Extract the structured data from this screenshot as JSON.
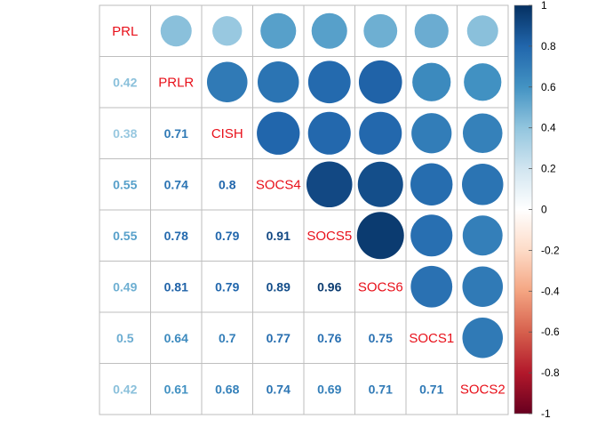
{
  "chart_data": {
    "type": "heatmap",
    "variables": [
      "PRL",
      "PRLR",
      "CISH",
      "SOCS4",
      "SOCS5",
      "SOCS6",
      "SOCS1",
      "SOCS2"
    ],
    "matrix": [
      [
        1.0,
        0.42,
        0.38,
        0.55,
        0.55,
        0.49,
        0.5,
        0.42
      ],
      [
        0.42,
        1.0,
        0.71,
        0.74,
        0.78,
        0.81,
        0.64,
        0.61
      ],
      [
        0.38,
        0.71,
        1.0,
        0.8,
        0.79,
        0.79,
        0.7,
        0.68
      ],
      [
        0.55,
        0.74,
        0.8,
        1.0,
        0.91,
        0.89,
        0.77,
        0.74
      ],
      [
        0.55,
        0.78,
        0.79,
        0.91,
        1.0,
        0.96,
        0.76,
        0.69
      ],
      [
        0.49,
        0.81,
        0.79,
        0.89,
        0.96,
        1.0,
        0.75,
        0.71
      ],
      [
        0.5,
        0.64,
        0.7,
        0.77,
        0.76,
        0.75,
        1.0,
        0.71
      ],
      [
        0.42,
        0.61,
        0.68,
        0.74,
        0.69,
        0.71,
        0.71,
        1.0
      ]
    ],
    "lower_labels": [
      [
        "0.42"
      ],
      [
        "0.38",
        "0.71"
      ],
      [
        "0.55",
        "0.74",
        "0.8"
      ],
      [
        "0.55",
        "0.78",
        "0.79",
        "0.91"
      ],
      [
        "0.49",
        "0.81",
        "0.79",
        "0.89",
        "0.96"
      ],
      [
        "0.5",
        "0.64",
        "0.7",
        "0.77",
        "0.76",
        "0.75"
      ],
      [
        "0.42",
        "0.61",
        "0.68",
        "0.74",
        "0.69",
        "0.71",
        "0.71"
      ]
    ],
    "upper": "circle",
    "lower": "number",
    "diagonal": "variable-name",
    "colorbar": {
      "range": [
        -1,
        1
      ],
      "ticks": [
        "-1",
        "-0.8",
        "-0.6",
        "-0.4",
        "-0.2",
        "0",
        "0.2",
        "0.4",
        "0.6",
        "0.8",
        "1"
      ]
    },
    "colors": {
      "negative_end": "#67001f",
      "positive_end": "#053061",
      "grid": "#bebebe",
      "diagonal_text": "#e8101a"
    }
  }
}
